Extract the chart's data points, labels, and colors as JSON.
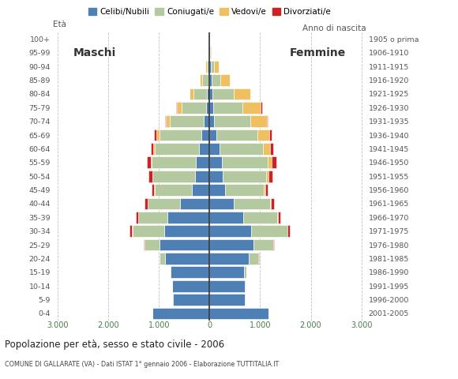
{
  "age_groups": [
    "100+",
    "95-99",
    "90-94",
    "85-89",
    "80-84",
    "75-79",
    "70-74",
    "65-69",
    "60-64",
    "55-59",
    "50-54",
    "45-49",
    "40-44",
    "35-39",
    "30-34",
    "25-29",
    "20-24",
    "15-19",
    "10-14",
    "5-9",
    "0-4"
  ],
  "birth_years": [
    "1905 o prima",
    "1906-1910",
    "1911-1915",
    "1916-1920",
    "1921-1925",
    "1926-1930",
    "1931-1935",
    "1936-1940",
    "1941-1945",
    "1946-1950",
    "1951-1955",
    "1956-1960",
    "1961-1965",
    "1966-1970",
    "1971-1975",
    "1976-1980",
    "1981-1985",
    "1986-1990",
    "1991-1995",
    "1996-2000",
    "2001-2005"
  ],
  "males": {
    "celibe": [
      5,
      8,
      15,
      25,
      45,
      65,
      115,
      160,
      210,
      270,
      290,
      355,
      590,
      830,
      890,
      990,
      885,
      765,
      740,
      730,
      1130
    ],
    "coniugato": [
      3,
      12,
      45,
      115,
      265,
      490,
      670,
      835,
      875,
      875,
      835,
      730,
      630,
      575,
      635,
      295,
      98,
      18,
      4,
      2,
      0
    ],
    "vedovo": [
      1,
      4,
      18,
      48,
      78,
      98,
      78,
      58,
      28,
      18,
      9,
      7,
      4,
      4,
      4,
      4,
      2,
      0,
      0,
      0,
      0
    ],
    "divorziato": [
      0,
      0,
      2,
      4,
      8,
      8,
      18,
      38,
      55,
      75,
      75,
      55,
      55,
      45,
      45,
      12,
      4,
      0,
      0,
      0,
      0
    ]
  },
  "females": {
    "nubile": [
      3,
      8,
      18,
      35,
      55,
      72,
      92,
      132,
      192,
      242,
      262,
      312,
      482,
      672,
      822,
      872,
      772,
      682,
      702,
      702,
      1162
    ],
    "coniugata": [
      3,
      15,
      72,
      182,
      422,
      572,
      712,
      812,
      862,
      912,
      862,
      762,
      712,
      662,
      712,
      382,
      192,
      45,
      9,
      4,
      0
    ],
    "vedova": [
      8,
      25,
      92,
      182,
      322,
      372,
      322,
      232,
      142,
      72,
      45,
      28,
      18,
      14,
      9,
      7,
      4,
      2,
      0,
      0,
      0
    ],
    "divorziata": [
      0,
      0,
      2,
      4,
      12,
      18,
      28,
      45,
      65,
      95,
      75,
      55,
      55,
      50,
      45,
      18,
      7,
      2,
      0,
      0,
      0
    ]
  },
  "colors": {
    "celibe": "#4e7fb5",
    "coniugato": "#b5c9a0",
    "vedovo": "#f0c060",
    "divorziato": "#cc2222"
  },
  "xlim": 3100,
  "xtick_vals": [
    -3000,
    -2000,
    -1000,
    0,
    1000,
    2000,
    3000
  ],
  "xtick_labels": [
    "3.000",
    "2.000",
    "1.000",
    "0",
    "1.000",
    "2.000",
    "3.000"
  ],
  "title": "Popolazione per età, sesso e stato civile - 2006",
  "subtitle": "COMUNE DI GALLARATE (VA) - Dati ISTAT 1° gennaio 2006 - Elaborazione TUTTITALIA.IT",
  "label_maschi": "Maschi",
  "label_femmine": "Femmine",
  "eta_label": "Età",
  "anno_label": "Anno di nascita",
  "legend_labels": [
    "Celibi/Nubili",
    "Coniugati/e",
    "Vedovi/e",
    "Divorziati/e"
  ],
  "bg_color": "#ffffff",
  "grid_color": "#bbbbbb",
  "bar_height": 0.85
}
